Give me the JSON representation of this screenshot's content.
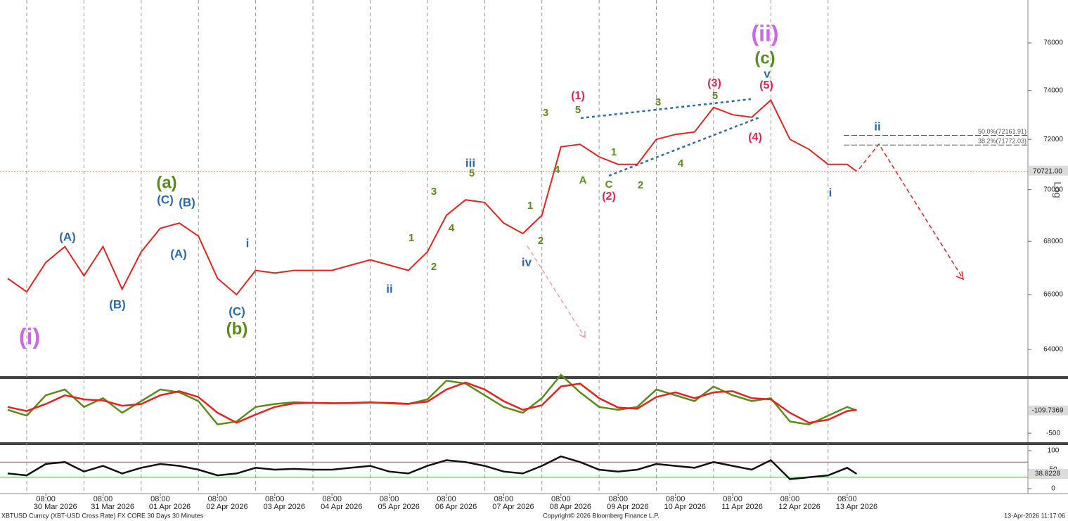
{
  "chart_data": [
    {
      "type": "line",
      "log_scale": true,
      "scale_label": "Log",
      "grid": true,
      "color": "#e8231f",
      "x": [
        "2026-03-29 16:00",
        "2026-03-30 00:00",
        "2026-03-30 08:00",
        "2026-03-30 16:00",
        "2026-03-31 00:00",
        "2026-03-31 08:00",
        "2026-03-31 16:00",
        "2026-04-01 00:00",
        "2026-04-01 08:00",
        "2026-04-01 16:00",
        "2026-04-02 00:00",
        "2026-04-02 08:00",
        "2026-04-02 16:00",
        "2026-04-03 00:00",
        "2026-04-03 08:00",
        "2026-04-03 16:00",
        "2026-04-04 00:00",
        "2026-04-04 08:00",
        "2026-04-04 16:00",
        "2026-04-05 00:00",
        "2026-04-05 08:00",
        "2026-04-05 16:00",
        "2026-04-06 00:00",
        "2026-04-06 08:00",
        "2026-04-06 16:00",
        "2026-04-07 00:00",
        "2026-04-07 08:00",
        "2026-04-07 16:00",
        "2026-04-08 00:00",
        "2026-04-08 08:00",
        "2026-04-08 16:00",
        "2026-04-09 00:00",
        "2026-04-09 08:00",
        "2026-04-09 16:00",
        "2026-04-10 00:00",
        "2026-04-10 08:00",
        "2026-04-10 16:00",
        "2026-04-11 00:00",
        "2026-04-11 08:00",
        "2026-04-11 16:00",
        "2026-04-12 00:00",
        "2026-04-12 08:00",
        "2026-04-12 16:00",
        "2026-04-13 00:00",
        "2026-04-13 08:00",
        "2026-04-13 12:00"
      ],
      "values": [
        66600,
        66100,
        67200,
        67800,
        66700,
        67800,
        66200,
        67600,
        68500,
        68700,
        68200,
        66600,
        66000,
        66900,
        66800,
        66900,
        66900,
        66900,
        67100,
        67300,
        67100,
        66900,
        67600,
        69000,
        69600,
        69500,
        68700,
        68300,
        69000,
        71700,
        71800,
        71300,
        71000,
        71000,
        72000,
        72200,
        72300,
        73300,
        73000,
        72900,
        73600,
        72000,
        71600,
        71000,
        71000,
        70721
      ],
      "xlim": [
        "2026-03-29 12:48",
        "2026-04-16 11:48"
      ],
      "xticks": [
        {
          "value": "2026-03-30 00:00",
          "label": "30 Mar 2026"
        },
        {
          "value": "2026-03-31 00:00",
          "label": "31 Mar 2026"
        },
        {
          "value": "2026-04-01 00:00",
          "label": "01 Apr 2026"
        },
        {
          "value": "2026-04-02 00:00",
          "label": "02 Apr 2026"
        },
        {
          "value": "2026-04-03 00:00",
          "label": "03 Apr 2026"
        },
        {
          "value": "2026-04-04 00:00",
          "label": "04 Apr 2026"
        },
        {
          "value": "2026-04-05 00:00",
          "label": "05 Apr 2026"
        },
        {
          "value": "2026-04-06 00:00",
          "label": "06 Apr 2026"
        },
        {
          "value": "2026-04-07 00:00",
          "label": "07 Apr 2026"
        },
        {
          "value": "2026-04-08 00:00",
          "label": "08 Apr 2026"
        },
        {
          "value": "2026-04-09 00:00",
          "label": "09 Apr 2026"
        },
        {
          "value": "2026-04-10 00:00",
          "label": "10 Apr 2026"
        },
        {
          "value": "2026-04-11 00:00",
          "label": "11 Apr 2026"
        },
        {
          "value": "2026-04-12 00:00",
          "label": "12 Apr 2026"
        },
        {
          "value": "2026-04-13 00:00",
          "label": "13 Apr 2026"
        }
      ],
      "xticks_time": [
        {
          "value": "2026-03-30 08:00",
          "label": "08:00"
        },
        {
          "value": "2026-03-31 08:00",
          "label": "08:00"
        },
        {
          "value": "2026-04-01 08:00",
          "label": "08:00"
        },
        {
          "value": "2026-04-02 08:00",
          "label": "08:00"
        },
        {
          "value": "2026-04-03 08:00",
          "label": "08:00"
        },
        {
          "value": "2026-04-04 08:00",
          "label": "08:00"
        },
        {
          "value": "2026-04-05 08:00",
          "label": "08:00"
        },
        {
          "value": "2026-04-06 08:00",
          "label": "08:00"
        },
        {
          "value": "2026-04-07 08:00",
          "label": "08:00"
        },
        {
          "value": "2026-04-08 08:00",
          "label": "08:00"
        },
        {
          "value": "2026-04-09 08:00",
          "label": "08:00"
        },
        {
          "value": "2026-04-10 08:00",
          "label": "08:00"
        },
        {
          "value": "2026-04-11 08:00",
          "label": "08:00"
        },
        {
          "value": "2026-04-12 08:00",
          "label": "08:00"
        },
        {
          "value": "2026-04-13 08:00",
          "label": "08:00"
        }
      ],
      "ylim": [
        63100,
        77850
      ],
      "yticks": [
        64000,
        66000,
        68000,
        70000,
        72000,
        74000,
        76000
      ],
      "last_price": {
        "value": 70721,
        "label": "70721.00",
        "color": "#f08c1a"
      },
      "fib_levels": [
        {
          "value": 72161.91,
          "label": "50.0%(72161.91)"
        },
        {
          "value": 71772.03,
          "label": "38.2%(71772.03)"
        }
      ],
      "annotations": [
        {
          "text": "(i)",
          "color": "#cc66ee"
        },
        {
          "text": "(ii)",
          "color": "#cc66ee"
        },
        {
          "text": "(a)",
          "color": "#5b8c1a"
        },
        {
          "text": "(b)",
          "color": "#5b8c1a"
        },
        {
          "text": "(c)",
          "color": "#5b8c1a"
        },
        {
          "text": "(A)",
          "color": "#2c6aa8"
        },
        {
          "text": "(B)",
          "color": "#2c6aa8"
        },
        {
          "text": "(C)",
          "color": "#2c6aa8"
        },
        {
          "text": "(B)",
          "color": "#2c6aa8"
        },
        {
          "text": "(A)",
          "color": "#2c6aa8"
        },
        {
          "text": "(C)",
          "color": "#2c6aa8"
        },
        {
          "text": "i",
          "color": "#2c6aa8"
        },
        {
          "text": "ii",
          "color": "#2c6aa8"
        },
        {
          "text": "iii",
          "color": "#2c6aa8"
        },
        {
          "text": "iv",
          "color": "#2c6aa8"
        },
        {
          "text": "v",
          "color": "#2c6aa8"
        },
        {
          "text": "i",
          "color": "#2c6aa8"
        },
        {
          "text": "ii",
          "color": "#2c6aa8"
        },
        {
          "text": "1",
          "color": "#5b8c1a"
        },
        {
          "text": "2",
          "color": "#5b8c1a"
        },
        {
          "text": "3",
          "color": "#5b8c1a"
        },
        {
          "text": "4",
          "color": "#5b8c1a"
        },
        {
          "text": "5",
          "color": "#5b8c1a"
        },
        {
          "text": "1",
          "color": "#5b8c1a"
        },
        {
          "text": "2",
          "color": "#5b8c1a"
        },
        {
          "text": "3",
          "color": "#5b8c1a"
        },
        {
          "text": "4",
          "color": "#5b8c1a"
        },
        {
          "text": "5",
          "color": "#5b8c1a"
        },
        {
          "text": "A",
          "color": "#5b8c1a"
        },
        {
          "text": "C",
          "color": "#5b8c1a"
        },
        {
          "text": "1",
          "color": "#5b8c1a"
        },
        {
          "text": "2",
          "color": "#5b8c1a"
        },
        {
          "text": "3",
          "color": "#5b8c1a"
        },
        {
          "text": "4",
          "color": "#5b8c1a"
        },
        {
          "text": "5",
          "color": "#5b8c1a"
        },
        {
          "text": "(1)",
          "color": "#e8234a"
        },
        {
          "text": "(2)",
          "color": "#e8234a"
        },
        {
          "text": "(3)",
          "color": "#e8234a"
        },
        {
          "text": "(4)",
          "color": "#e8234a"
        },
        {
          "text": "(5)",
          "color": "#e8234a"
        }
      ]
    },
    {
      "type": "line",
      "series": [
        {
          "color": "#5b8c1a",
          "values": [
            -100,
            -200,
            150,
            250,
            -50,
            100,
            -150,
            50,
            250,
            200,
            50,
            -350,
            -300,
            -50,
            0,
            30,
            20,
            10,
            20,
            30,
            10,
            0,
            80,
            400,
            350,
            150,
            -50,
            -150,
            100,
            500,
            200,
            -50,
            -100,
            -50,
            250,
            150,
            50,
            300,
            150,
            50,
            100,
            -300,
            -350,
            -200,
            -50,
            -109.7369
          ]
        },
        {
          "color": "#e8231f",
          "values": [
            -50,
            -120,
            0,
            150,
            80,
            60,
            -30,
            0,
            150,
            220,
            120,
            -150,
            -320,
            -180,
            -50,
            10,
            20,
            15,
            15,
            25,
            20,
            5,
            40,
            250,
            370,
            250,
            50,
            -100,
            -20,
            300,
            350,
            100,
            -60,
            -80,
            120,
            200,
            100,
            200,
            220,
            100,
            80,
            -150,
            -320,
            -270,
            -120,
            -100
          ]
        }
      ],
      "ylim": [
        -655,
        417
      ],
      "yticks": [
        -500
      ]
    },
    {
      "type": "line",
      "color": "#111111",
      "values": [
        40,
        35,
        65,
        70,
        45,
        60,
        40,
        55,
        65,
        60,
        50,
        35,
        40,
        55,
        50,
        52,
        50,
        50,
        55,
        60,
        45,
        40,
        60,
        75,
        70,
        60,
        45,
        40,
        60,
        85,
        70,
        50,
        45,
        50,
        65,
        60,
        55,
        70,
        60,
        50,
        75,
        25,
        30,
        35,
        55,
        38.8228
      ],
      "ylim": [
        -13,
        113
      ],
      "yticks": [
        0,
        50,
        100
      ],
      "levels": [
        {
          "value": 70,
          "color": "#e04040"
        },
        {
          "value": 30,
          "color": "#30c030"
        }
      ]
    }
  ],
  "footer": {
    "left": "XBTUSD Curncy (XBT-USD Cross Rate) FX CORE 30 Days 30 Minutes",
    "center": "Copyright© 2026 Bloomberg Finance L.P.",
    "right": "13-Apr-2026 11:17:06"
  }
}
